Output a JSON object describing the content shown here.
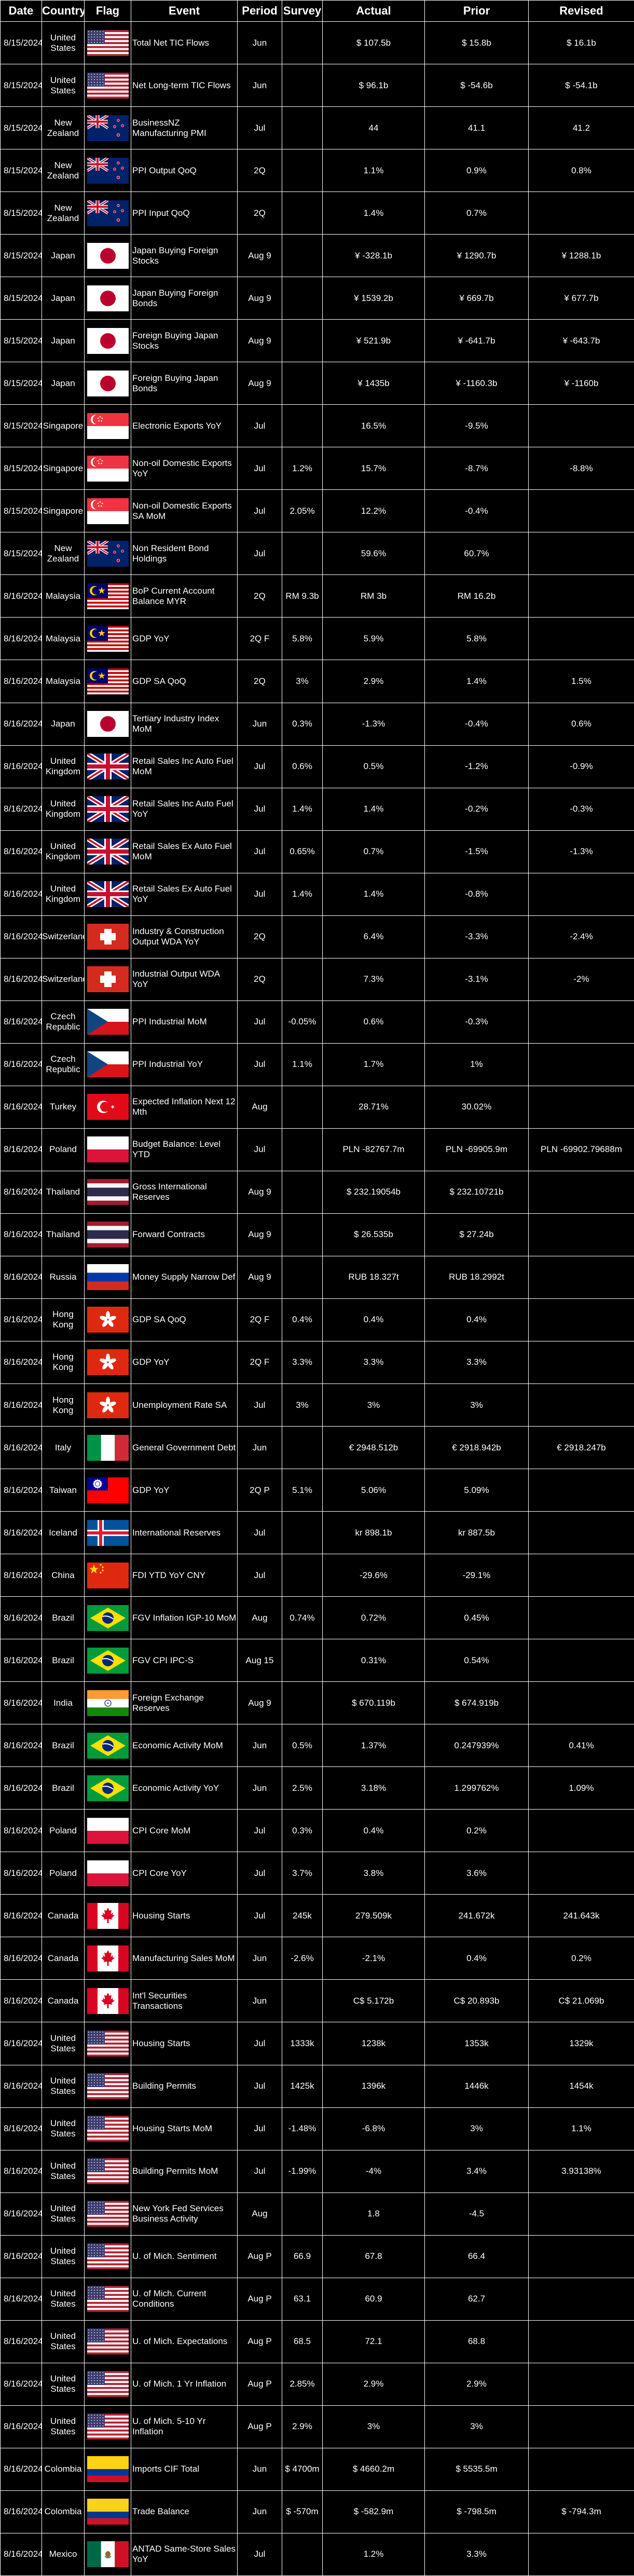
{
  "headers": [
    "Date",
    "Country",
    "Flag",
    "Event",
    "Period",
    "Survey",
    "Actual",
    "Prior",
    "Revised"
  ],
  "rows": [
    {
      "date": "8/15/2024",
      "country": "United States",
      "flag": "us-flag",
      "event": "Total Net TIC Flows",
      "period": "Jun",
      "survey": "",
      "actual": "$ 107.5b",
      "prior": "$ 15.8b",
      "revised": "$ 16.1b"
    },
    {
      "date": "8/15/2024",
      "country": "United States",
      "flag": "us-flag",
      "event": "Net Long-term TIC Flows",
      "period": "Jun",
      "survey": "",
      "actual": "$ 96.1b",
      "prior": "$ -54.6b",
      "revised": "$ -54.1b"
    },
    {
      "date": "8/15/2024",
      "country": "New Zealand",
      "flag": "new-zealand-flag",
      "event": "BusinessNZ Manufacturing PMI",
      "period": "Jul",
      "survey": "",
      "actual": "44",
      "prior": "41.1",
      "revised": "41.2"
    },
    {
      "date": "8/15/2024",
      "country": "New Zealand",
      "flag": "new-zealand-flag",
      "event": "PPI Output QoQ",
      "period": "2Q",
      "survey": "",
      "actual": "1.1%",
      "prior": "0.9%",
      "revised": "0.8%"
    },
    {
      "date": "8/15/2024",
      "country": "New Zealand",
      "flag": "new-zealand-flag",
      "event": "PPI Input QoQ",
      "period": "2Q",
      "survey": "",
      "actual": "1.4%",
      "prior": "0.7%",
      "revised": ""
    },
    {
      "date": "8/15/2024",
      "country": "Japan",
      "flag": "japan-flag",
      "event": "Japan Buying Foreign Stocks",
      "period": "Aug 9",
      "survey": "",
      "actual": "¥ -328.1b",
      "prior": "¥ 1290.7b",
      "revised": "¥ 1288.1b"
    },
    {
      "date": "8/15/2024",
      "country": "Japan",
      "flag": "japan-flag",
      "event": "Japan Buying Foreign Bonds",
      "period": "Aug 9",
      "survey": "",
      "actual": "¥ 1539.2b",
      "prior": "¥ 669.7b",
      "revised": "¥ 677.7b"
    },
    {
      "date": "8/15/2024",
      "country": "Japan",
      "flag": "japan-flag",
      "event": "Foreign Buying Japan Stocks",
      "period": "Aug 9",
      "survey": "",
      "actual": "¥ 521.9b",
      "prior": "¥ -641.7b",
      "revised": "¥ -643.7b"
    },
    {
      "date": "8/15/2024",
      "country": "Japan",
      "flag": "japan-flag",
      "event": "Foreign Buying Japan Bonds",
      "period": "Aug 9",
      "survey": "",
      "actual": "¥ 1435b",
      "prior": "¥ -1160.3b",
      "revised": "¥ -1160b"
    },
    {
      "date": "8/15/2024",
      "country": "Singapore",
      "flag": "singapore-flag",
      "event": "Electronic Exports YoY",
      "period": "Jul",
      "survey": "",
      "actual": "16.5%",
      "prior": "-9.5%",
      "revised": ""
    },
    {
      "date": "8/15/2024",
      "country": "Singapore",
      "flag": "singapore-flag",
      "event": "Non-oil Domestic Exports YoY",
      "period": "Jul",
      "survey": "1.2%",
      "actual": "15.7%",
      "prior": "-8.7%",
      "revised": "-8.8%"
    },
    {
      "date": "8/15/2024",
      "country": "Singapore",
      "flag": "singapore-flag",
      "event": "Non-oil Domestic Exports SA MoM",
      "period": "Jul",
      "survey": "2.05%",
      "actual": "12.2%",
      "prior": "-0.4%",
      "revised": ""
    },
    {
      "date": "8/15/2024",
      "country": "New Zealand",
      "flag": "new-zealand-flag",
      "event": "Non Resident Bond Holdings",
      "period": "Jul",
      "survey": "",
      "actual": "59.6%",
      "prior": "60.7%",
      "revised": ""
    },
    {
      "date": "8/16/2024",
      "country": "Malaysia",
      "flag": "malaysia-flag",
      "event": "BoP Current Account Balance MYR",
      "period": "2Q",
      "survey": "RM 9.3b",
      "actual": "RM 3b",
      "prior": "RM 16.2b",
      "revised": ""
    },
    {
      "date": "8/16/2024",
      "country": "Malaysia",
      "flag": "malaysia-flag",
      "event": "GDP YoY",
      "period": "2Q F",
      "survey": "5.8%",
      "actual": "5.9%",
      "prior": "5.8%",
      "revised": ""
    },
    {
      "date": "8/16/2024",
      "country": "Malaysia",
      "flag": "malaysia-flag",
      "event": "GDP SA QoQ",
      "period": "2Q",
      "survey": "3%",
      "actual": "2.9%",
      "prior": "1.4%",
      "revised": "1.5%"
    },
    {
      "date": "8/16/2024",
      "country": "Japan",
      "flag": "japan-flag",
      "event": "Tertiary Industry Index MoM",
      "period": "Jun",
      "survey": "0.3%",
      "actual": "-1.3%",
      "prior": "-0.4%",
      "revised": "0.6%"
    },
    {
      "date": "8/16/2024",
      "country": "United Kingdom",
      "flag": "uk-flag",
      "event": "Retail Sales Inc Auto Fuel MoM",
      "period": "Jul",
      "survey": "0.6%",
      "actual": "0.5%",
      "prior": "-1.2%",
      "revised": "-0.9%"
    },
    {
      "date": "8/16/2024",
      "country": "United Kingdom",
      "flag": "uk-flag",
      "event": "Retail Sales Inc Auto Fuel YoY",
      "period": "Jul",
      "survey": "1.4%",
      "actual": "1.4%",
      "prior": "-0.2%",
      "revised": "-0.3%"
    },
    {
      "date": "8/16/2024",
      "country": "United Kingdom",
      "flag": "uk-flag",
      "event": "Retail Sales Ex Auto Fuel MoM",
      "period": "Jul",
      "survey": "0.65%",
      "actual": "0.7%",
      "prior": "-1.5%",
      "revised": "-1.3%"
    },
    {
      "date": "8/16/2024",
      "country": "United Kingdom",
      "flag": "uk-flag",
      "event": "Retail Sales Ex Auto Fuel YoY",
      "period": "Jul",
      "survey": "1.4%",
      "actual": "1.4%",
      "prior": "-0.8%",
      "revised": ""
    },
    {
      "date": "8/16/2024",
      "country": "Switzerland",
      "flag": "switzerland-flag",
      "event": "Industry & Construction Output WDA YoY",
      "period": "2Q",
      "survey": "",
      "actual": "6.4%",
      "prior": "-3.3%",
      "revised": "-2.4%"
    },
    {
      "date": "8/16/2024",
      "country": "Switzerland",
      "flag": "switzerland-flag",
      "event": "Industrial Output WDA YoY",
      "period": "2Q",
      "survey": "",
      "actual": "7.3%",
      "prior": "-3.1%",
      "revised": "-2%"
    },
    {
      "date": "8/16/2024",
      "country": "Czech Republic",
      "flag": "czech-flag",
      "event": "PPI Industrial MoM",
      "period": "Jul",
      "survey": "-0.05%",
      "actual": "0.6%",
      "prior": "-0.3%",
      "revised": ""
    },
    {
      "date": "8/16/2024",
      "country": "Czech Republic",
      "flag": "czech-flag",
      "event": "PPI Industrial YoY",
      "period": "Jul",
      "survey": "1.1%",
      "actual": "1.7%",
      "prior": "1%",
      "revised": ""
    },
    {
      "date": "8/16/2024",
      "country": "Turkey",
      "flag": "turkey-flag",
      "event": "Expected Inflation Next 12 Mth",
      "period": "Aug",
      "survey": "",
      "actual": "28.71%",
      "prior": "30.02%",
      "revised": ""
    },
    {
      "date": "8/16/2024",
      "country": "Poland",
      "flag": "poland-flag",
      "event": "Budget Balance: Level YTD",
      "period": "Jul",
      "survey": "",
      "actual": "PLN -82767.7m",
      "prior": "PLN -69905.9m",
      "revised": "PLN -69902.79688m"
    },
    {
      "date": "8/16/2024",
      "country": "Thailand",
      "flag": "thailand-flag",
      "event": "Gross International Reserves",
      "period": "Aug 9",
      "survey": "",
      "actual": "$ 232.19054b",
      "prior": "$ 232.10721b",
      "revised": ""
    },
    {
      "date": "8/16/2024",
      "country": "Thailand",
      "flag": "thailand-flag",
      "event": "Forward Contracts",
      "period": "Aug 9",
      "survey": "",
      "actual": "$ 26.535b",
      "prior": "$ 27.24b",
      "revised": ""
    },
    {
      "date": "8/16/2024",
      "country": "Russia",
      "flag": "russia-flag",
      "event": "Money Supply Narrow Def",
      "period": "Aug 9",
      "survey": "",
      "actual": "RUB 18.327t",
      "prior": "RUB 18.2992t",
      "revised": ""
    },
    {
      "date": "8/16/2024",
      "country": "Hong Kong",
      "flag": "hong-kong-flag",
      "event": "GDP SA QoQ",
      "period": "2Q F",
      "survey": "0.4%",
      "actual": "0.4%",
      "prior": "0.4%",
      "revised": ""
    },
    {
      "date": "8/16/2024",
      "country": "Hong Kong",
      "flag": "hong-kong-flag",
      "event": "GDP YoY",
      "period": "2Q F",
      "survey": "3.3%",
      "actual": "3.3%",
      "prior": "3.3%",
      "revised": ""
    },
    {
      "date": "8/16/2024",
      "country": "Hong Kong",
      "flag": "hong-kong-flag",
      "event": "Unemployment Rate SA",
      "period": "Jul",
      "survey": "3%",
      "actual": "3%",
      "prior": "3%",
      "revised": ""
    },
    {
      "date": "8/16/2024",
      "country": "Italy",
      "flag": "italy-flag",
      "event": "General Government Debt",
      "period": "Jun",
      "survey": "",
      "actual": "€ 2948.512b",
      "prior": "€ 2918.942b",
      "revised": "€ 2918.247b"
    },
    {
      "date": "8/16/2024",
      "country": "Taiwan",
      "flag": "taiwan-flag",
      "event": "GDP YoY",
      "period": "2Q P",
      "survey": "5.1%",
      "actual": "5.06%",
      "prior": "5.09%",
      "revised": ""
    },
    {
      "date": "8/16/2024",
      "country": "Iceland",
      "flag": "iceland-flag",
      "event": "International Reserves",
      "period": "Jul",
      "survey": "",
      "actual": "kr 898.1b",
      "prior": "kr 887.5b",
      "revised": ""
    },
    {
      "date": "8/16/2024",
      "country": "China",
      "flag": "china-flag",
      "event": "FDI YTD YoY CNY",
      "period": "Jul",
      "survey": "",
      "actual": "-29.6%",
      "prior": "-29.1%",
      "revised": ""
    },
    {
      "date": "8/16/2024",
      "country": "Brazil",
      "flag": "brazil-flag",
      "event": "FGV Inflation IGP-10 MoM",
      "period": "Aug",
      "survey": "0.74%",
      "actual": "0.72%",
      "prior": "0.45%",
      "revised": ""
    },
    {
      "date": "8/16/2024",
      "country": "Brazil",
      "flag": "brazil-flag",
      "event": "FGV CPI IPC-S",
      "period": "Aug 15",
      "survey": "",
      "actual": "0.31%",
      "prior": "0.54%",
      "revised": ""
    },
    {
      "date": "8/16/2024",
      "country": "India",
      "flag": "india-flag",
      "event": "Foreign Exchange Reserves",
      "period": "Aug 9",
      "survey": "",
      "actual": "$ 670.119b",
      "prior": "$ 674.919b",
      "revised": ""
    },
    {
      "date": "8/16/2024",
      "country": "Brazil",
      "flag": "brazil-flag",
      "event": "Economic Activity MoM",
      "period": "Jun",
      "survey": "0.5%",
      "actual": "1.37%",
      "prior": "0.247939%",
      "revised": "0.41%"
    },
    {
      "date": "8/16/2024",
      "country": "Brazil",
      "flag": "brazil-flag",
      "event": "Economic Activity YoY",
      "period": "Jun",
      "survey": "2.5%",
      "actual": "3.18%",
      "prior": "1.299762%",
      "revised": "1.09%"
    },
    {
      "date": "8/16/2024",
      "country": "Poland",
      "flag": "poland-flag",
      "event": "CPI Core MoM",
      "period": "Jul",
      "survey": "0.3%",
      "actual": "0.4%",
      "prior": "0.2%",
      "revised": ""
    },
    {
      "date": "8/16/2024",
      "country": "Poland",
      "flag": "poland-flag",
      "event": "CPI Core YoY",
      "period": "Jul",
      "survey": "3.7%",
      "actual": "3.8%",
      "prior": "3.6%",
      "revised": ""
    },
    {
      "date": "8/16/2024",
      "country": "Canada",
      "flag": "canada-flag",
      "event": "Housing Starts",
      "period": "Jul",
      "survey": "245k",
      "actual": "279.509k",
      "prior": "241.672k",
      "revised": "241.643k"
    },
    {
      "date": "8/16/2024",
      "country": "Canada",
      "flag": "canada-flag",
      "event": "Manufacturing Sales MoM",
      "period": "Jun",
      "survey": "-2.6%",
      "actual": "-2.1%",
      "prior": "0.4%",
      "revised": "0.2%"
    },
    {
      "date": "8/16/2024",
      "country": "Canada",
      "flag": "canada-flag",
      "event": "Int'l Securities Transactions",
      "period": "Jun",
      "survey": "",
      "actual": "C$ 5.172b",
      "prior": "C$ 20.893b",
      "revised": "C$ 21.069b"
    },
    {
      "date": "8/16/2024",
      "country": "United States",
      "flag": "us-flag",
      "event": "Housing Starts",
      "period": "Jul",
      "survey": "1333k",
      "actual": "1238k",
      "prior": "1353k",
      "revised": "1329k"
    },
    {
      "date": "8/16/2024",
      "country": "United States",
      "flag": "us-flag",
      "event": "Building Permits",
      "period": "Jul",
      "survey": "1425k",
      "actual": "1396k",
      "prior": "1446k",
      "revised": "1454k"
    },
    {
      "date": "8/16/2024",
      "country": "United States",
      "flag": "us-flag",
      "event": "Housing Starts MoM",
      "period": "Jul",
      "survey": "-1.48%",
      "actual": "-6.8%",
      "prior": "3%",
      "revised": "1.1%"
    },
    {
      "date": "8/16/2024",
      "country": "United States",
      "flag": "us-flag",
      "event": "Building Permits MoM",
      "period": "Jul",
      "survey": "-1.99%",
      "actual": "-4%",
      "prior": "3.4%",
      "revised": "3.93138%"
    },
    {
      "date": "8/16/2024",
      "country": "United States",
      "flag": "us-flag",
      "event": "New York Fed Services Business Activity",
      "period": "Aug",
      "survey": "",
      "actual": "1.8",
      "prior": "-4.5",
      "revised": ""
    },
    {
      "date": "8/16/2024",
      "country": "United States",
      "flag": "us-flag",
      "event": "U. of Mich. Sentiment",
      "period": "Aug P",
      "survey": "66.9",
      "actual": "67.8",
      "prior": "66.4",
      "revised": ""
    },
    {
      "date": "8/16/2024",
      "country": "United States",
      "flag": "us-flag",
      "event": "U. of Mich. Current Conditions",
      "period": "Aug P",
      "survey": "63.1",
      "actual": "60.9",
      "prior": "62.7",
      "revised": ""
    },
    {
      "date": "8/16/2024",
      "country": "United States",
      "flag": "us-flag",
      "event": "U. of Mich. Expectations",
      "period": "Aug P",
      "survey": "68.5",
      "actual": "72.1",
      "prior": "68.8",
      "revised": ""
    },
    {
      "date": "8/16/2024",
      "country": "United States",
      "flag": "us-flag",
      "event": "U. of Mich. 1 Yr Inflation",
      "period": "Aug P",
      "survey": "2.85%",
      "actual": "2.9%",
      "prior": "2.9%",
      "revised": ""
    },
    {
      "date": "8/16/2024",
      "country": "United States",
      "flag": "us-flag",
      "event": "U. of Mich. 5-10 Yr Inflation",
      "period": "Aug P",
      "survey": "2.9%",
      "actual": "3%",
      "prior": "3%",
      "revised": ""
    },
    {
      "date": "8/16/2024",
      "country": "Colombia",
      "flag": "colombia-flag",
      "event": "Imports CIF Total",
      "period": "Jun",
      "survey": "$ 4700m",
      "actual": "$ 4660.2m",
      "prior": "$ 5535.5m",
      "revised": ""
    },
    {
      "date": "8/16/2024",
      "country": "Colombia",
      "flag": "colombia-flag",
      "event": "Trade Balance",
      "period": "Jun",
      "survey": "$ -570m",
      "actual": "$ -582.9m",
      "prior": "$ -798.5m",
      "revised": "$ -794.3m"
    },
    {
      "date": "8/16/2024",
      "country": "Mexico",
      "flag": "mexico-flag",
      "event": "ANTAD Same-Store Sales YoY",
      "period": "Jul",
      "survey": "",
      "actual": "1.2%",
      "prior": "3.3%",
      "revised": ""
    }
  ]
}
